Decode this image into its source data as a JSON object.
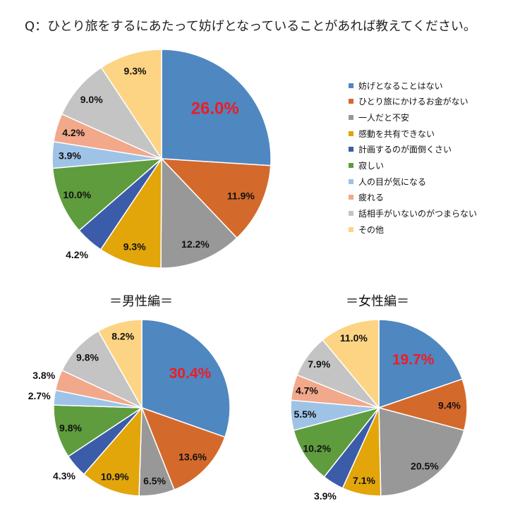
{
  "title": "Q：ひとり旅をするにあたって妨げとなっていることがあれば教えてください。",
  "chart_data": [
    {
      "type": "pie",
      "categories": [
        "妨げとなることはない",
        "ひとり旅にかけるお金がない",
        "一人だと不安",
        "感動を共有できない",
        "計画するのが面倒くさい",
        "寂しい",
        "人の目が気になる",
        "疲れる",
        "話相手がいないのがつまらない",
        "その他"
      ],
      "values": [
        26.0,
        11.9,
        12.2,
        9.3,
        4.2,
        10.0,
        3.9,
        4.2,
        9.0,
        9.3
      ],
      "unit": "%",
      "colors": [
        "#4f87c1",
        "#d4692c",
        "#989898",
        "#e2a50a",
        "#3b5ca9",
        "#5e9c3e",
        "#9ec3e6",
        "#f2a88b",
        "#c4c4c4",
        "#fdd483"
      ],
      "highlight_color": "#ee1c25",
      "legend_position": "right"
    },
    {
      "type": "pie",
      "title": "＝男性編＝",
      "categories": [
        "妨げとなることはない",
        "ひとり旅にかけるお金がない",
        "一人だと不安",
        "感動を共有できない",
        "計画するのが面倒くさい",
        "寂しい",
        "人の目が気になる",
        "疲れる",
        "話相手がいないのがつまらない",
        "その他"
      ],
      "values": [
        30.4,
        13.6,
        6.5,
        10.9,
        4.3,
        9.8,
        2.7,
        3.8,
        9.8,
        8.2
      ],
      "unit": "%",
      "colors": [
        "#4f87c1",
        "#d4692c",
        "#989898",
        "#e2a50a",
        "#3b5ca9",
        "#5e9c3e",
        "#9ec3e6",
        "#f2a88b",
        "#c4c4c4",
        "#fdd483"
      ],
      "highlight_color": "#ee1c25"
    },
    {
      "type": "pie",
      "title": "＝女性編＝",
      "categories": [
        "妨げとなることはない",
        "ひとり旅にかけるお金がない",
        "一人だと不安",
        "感動を共有できない",
        "計画するのが面倒くさい",
        "寂しい",
        "人の目が気になる",
        "疲れる",
        "話相手がいないのがつまらない",
        "その他"
      ],
      "values": [
        19.7,
        9.4,
        20.5,
        7.1,
        3.9,
        10.2,
        5.5,
        4.7,
        7.9,
        11.0
      ],
      "unit": "%",
      "colors": [
        "#4f87c1",
        "#d4692c",
        "#989898",
        "#e2a50a",
        "#3b5ca9",
        "#5e9c3e",
        "#9ec3e6",
        "#f2a88b",
        "#c4c4c4",
        "#fdd483"
      ],
      "highlight_color": "#ee1c25"
    }
  ]
}
